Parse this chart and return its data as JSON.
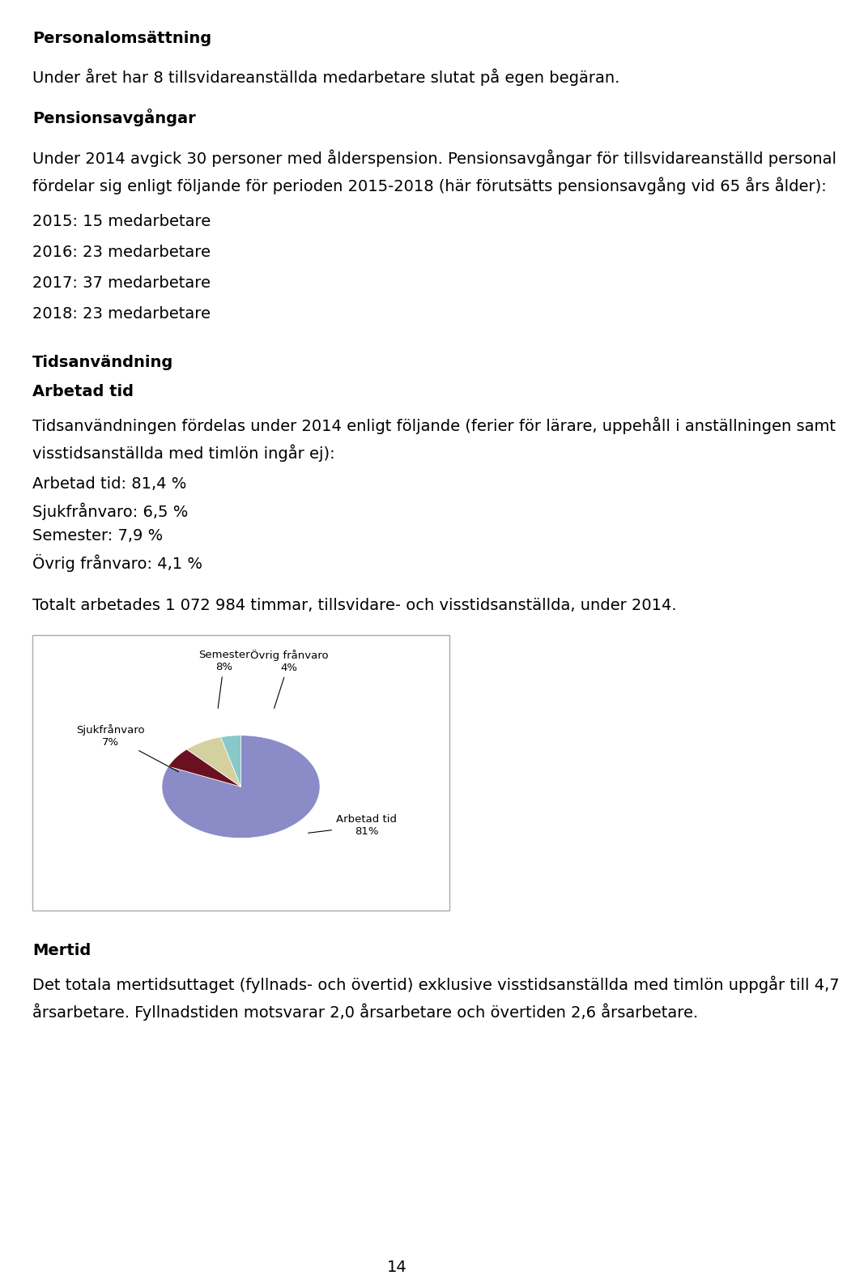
{
  "page_title": "Personalomsättning",
  "para1": "Under året har 8 tillsvidareanställda medarbetare slutat på egen begäran.",
  "section2_title": "Pensionsavgångar",
  "para2_line1": "Under 2014 avgick 30 personer med ålderspension. Pensionsavgångar för tillsvidareanställd personal",
  "para2_line2": "fördelar sig enligt följande för perioden 2015-2018 (här förutsätts pensionsavgång vid 65 års ålder):",
  "bullet_list": [
    "2015: 15 medarbetare",
    "2016: 23 medarbetare",
    "2017: 37 medarbetare",
    "2018: 23 medarbetare"
  ],
  "section3_title": "Tidsanvändning",
  "section3_sub": "Arbetad tid",
  "para3_line1": "Tidsanvändningen fördelas under 2014 enligt följande (ferier för lärare, uppehåll i anställningen samt",
  "para3_line2": "visstidsanställda med timlön ingår ej):",
  "stats_list": [
    "Arbetad tid: 81,4 %",
    "Sjukfrånvaro: 6,5 %",
    "Semester: 7,9 %",
    "Övrig frånvaro: 4,1 %"
  ],
  "para4": "Totalt arbetades 1 072 984 timmar, tillsvidare- och visstidsanställda, under 2014.",
  "pie_labels": [
    "Arbetad tid",
    "Sjukfrånvaro",
    "Semester",
    "Övrig frånvaro"
  ],
  "pie_values": [
    81.4,
    6.5,
    7.9,
    4.1
  ],
  "pie_colors": [
    "#8B8BC8",
    "#6B1020",
    "#D4D0A0",
    "#88C8C8"
  ],
  "pie_label_short": [
    "81%",
    "7%",
    "8%",
    "4%"
  ],
  "section4_title": "Mertid",
  "para5_line1": "Det totala mertidsuttaget (fyllnads- och övertid) exklusive visstidsanställda med timlön uppgår till 4,7",
  "para5_line2": "årsarbetare. Fyllnadstiden motsvarar 2,0 årsarbetare och övertiden 2,6 årsarbetare.",
  "page_number": "14",
  "bg_color": "#ffffff",
  "text_color": "#000000"
}
